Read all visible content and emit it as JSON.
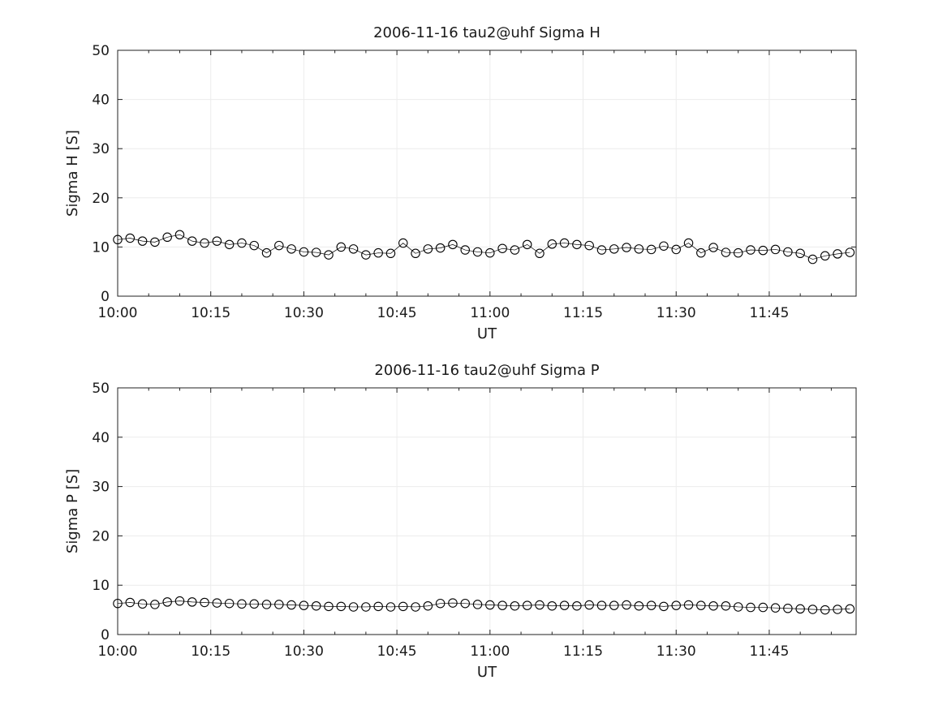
{
  "page": {
    "background": "#ffffff",
    "text_color": "#1a1a1a",
    "axis_color": "#222222",
    "grid_color": "#ececec",
    "marker_color": "#000000"
  },
  "chart_data": [
    {
      "type": "scatter",
      "title": "2006-11-16  tau2@uhf Sigma H",
      "xlabel": "UT",
      "ylabel": "Sigma H [S]",
      "ylim": [
        0,
        50
      ],
      "yticks": [
        0,
        10,
        20,
        30,
        40,
        50
      ],
      "xlim_minutes": [
        600,
        719
      ],
      "xticks_minutes": [
        600,
        615,
        630,
        645,
        660,
        675,
        690,
        705
      ],
      "xtick_labels": [
        "10:00",
        "10:15",
        "10:30",
        "10:45",
        "11:00",
        "11:15",
        "11:30",
        "11:45"
      ],
      "minor_xtick_step_minutes": 5,
      "grid": true,
      "legend": "none",
      "marker": "open-circle",
      "x_minutes": [
        600,
        602,
        604,
        606,
        608,
        610,
        612,
        614,
        616,
        618,
        620,
        622,
        624,
        626,
        628,
        630,
        632,
        634,
        636,
        638,
        640,
        642,
        644,
        646,
        648,
        650,
        652,
        654,
        656,
        658,
        660,
        662,
        664,
        666,
        668,
        670,
        672,
        674,
        676,
        678,
        680,
        682,
        684,
        686,
        688,
        690,
        692,
        694,
        696,
        698,
        700,
        702,
        704,
        706,
        708,
        710,
        712,
        714,
        716,
        718
      ],
      "values": [
        11.5,
        11.8,
        11.2,
        11.0,
        12.0,
        12.5,
        11.2,
        10.8,
        11.2,
        10.5,
        10.8,
        10.3,
        8.8,
        10.3,
        9.6,
        9.0,
        8.9,
        8.4,
        10.0,
        9.6,
        8.4,
        8.8,
        8.7,
        10.8,
        8.7,
        9.6,
        9.8,
        10.5,
        9.4,
        9.0,
        8.8,
        9.7,
        9.4,
        10.5,
        8.7,
        10.6,
        10.8,
        10.5,
        10.3,
        9.4,
        9.6,
        9.9,
        9.6,
        9.5,
        10.2,
        9.5,
        10.8,
        8.8,
        9.9,
        8.9,
        8.8,
        9.4,
        9.3,
        9.5,
        9.0,
        8.7,
        7.5,
        8.2,
        8.6,
        8.9
      ]
    },
    {
      "type": "scatter",
      "title": "2006-11-16  tau2@uhf Sigma P",
      "xlabel": "UT",
      "ylabel": "Sigma P [S]",
      "ylim": [
        0,
        50
      ],
      "yticks": [
        0,
        10,
        20,
        30,
        40,
        50
      ],
      "xlim_minutes": [
        600,
        719
      ],
      "xticks_minutes": [
        600,
        615,
        630,
        645,
        660,
        675,
        690,
        705
      ],
      "xtick_labels": [
        "10:00",
        "10:15",
        "10:30",
        "10:45",
        "11:00",
        "11:15",
        "11:30",
        "11:45"
      ],
      "minor_xtick_step_minutes": 5,
      "grid": true,
      "legend": "none",
      "marker": "open-circle",
      "x_minutes": [
        600,
        602,
        604,
        606,
        608,
        610,
        612,
        614,
        616,
        618,
        620,
        622,
        624,
        626,
        628,
        630,
        632,
        634,
        636,
        638,
        640,
        642,
        644,
        646,
        648,
        650,
        652,
        654,
        656,
        658,
        660,
        662,
        664,
        666,
        668,
        670,
        672,
        674,
        676,
        678,
        680,
        682,
        684,
        686,
        688,
        690,
        692,
        694,
        696,
        698,
        700,
        702,
        704,
        706,
        708,
        710,
        712,
        714,
        716,
        718
      ],
      "values": [
        6.3,
        6.5,
        6.2,
        6.1,
        6.6,
        6.8,
        6.6,
        6.5,
        6.4,
        6.3,
        6.2,
        6.2,
        6.1,
        6.1,
        6.0,
        5.9,
        5.8,
        5.7,
        5.7,
        5.6,
        5.6,
        5.7,
        5.6,
        5.7,
        5.6,
        5.8,
        6.3,
        6.4,
        6.3,
        6.1,
        6.0,
        5.9,
        5.8,
        5.9,
        6.0,
        5.8,
        5.9,
        5.8,
        6.0,
        5.9,
        5.9,
        6.0,
        5.8,
        5.9,
        5.7,
        5.9,
        6.0,
        5.9,
        5.8,
        5.8,
        5.6,
        5.5,
        5.5,
        5.4,
        5.3,
        5.2,
        5.1,
        5.0,
        5.1,
        5.2
      ]
    }
  ]
}
